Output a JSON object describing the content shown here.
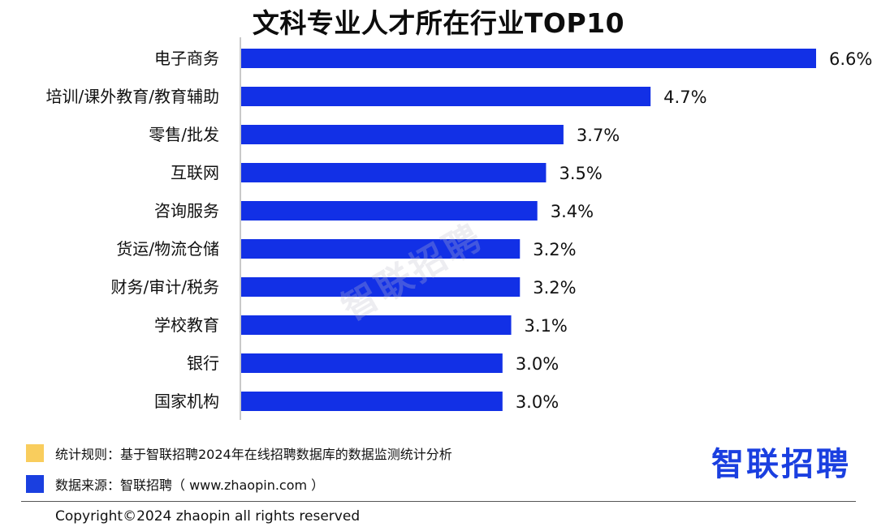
{
  "chart_data": {
    "type": "bar",
    "orientation": "horizontal",
    "title": "文科专业人才所在行业TOP10",
    "categories": [
      "电子商务",
      "培训/课外教育/教育辅助",
      "零售/批发",
      "互联网",
      "咨询服务",
      "货运/物流仓储",
      "财务/审计/税务",
      "学校教育",
      "银行",
      "国家机构"
    ],
    "values": [
      6.6,
      4.7,
      3.7,
      3.5,
      3.4,
      3.2,
      3.2,
      3.1,
      3.0,
      3.0
    ],
    "data_labels": [
      "6.6%",
      "4.7%",
      "3.7%",
      "3.5%",
      "3.4%",
      "3.2%",
      "3.2%",
      "3.1%",
      "3.0%",
      "3.0%"
    ],
    "bar_color": "#1230e6",
    "xlim": [
      0,
      6.6
    ],
    "grid": false
  },
  "watermark": "智联招聘",
  "notes": [
    {
      "text": "统计规则：基于智联招聘2024年在线招聘数据库的数据监测统计分析",
      "color": "#f9cd5d"
    },
    {
      "text": "数据来源：智联招聘（ www.zhaopin.com ）",
      "color": "#1a3fe0"
    }
  ],
  "brand_logo": "智联招聘",
  "copyright": "Copyright©2024 zhaopin all rights reserved"
}
